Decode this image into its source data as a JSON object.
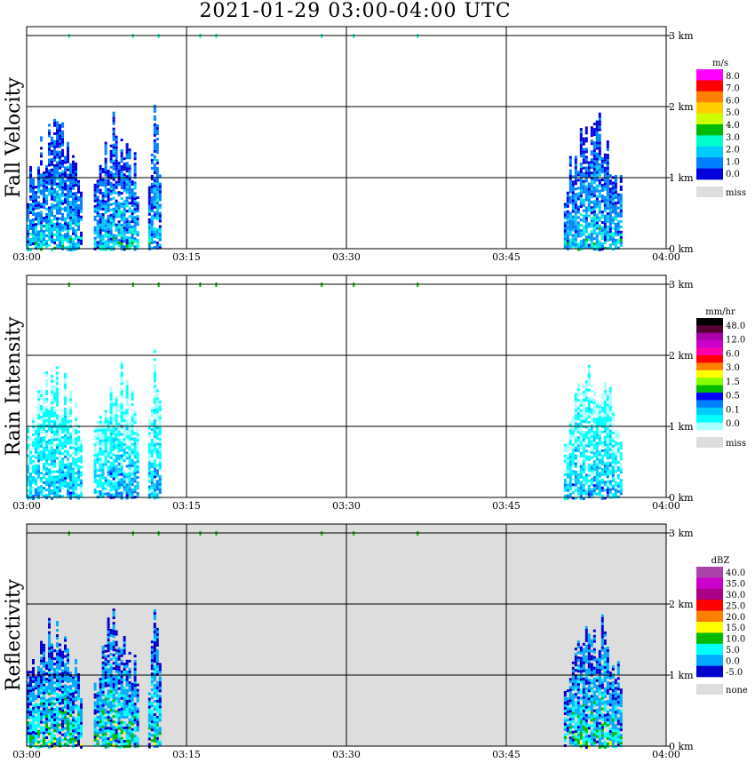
{
  "title": "2021-01-29   03:00-04:00 UTC",
  "chart_data": [
    {
      "type": "heatmap",
      "title": "Fall Velocity",
      "xlabel": "",
      "ylabel": "Fall Velocity",
      "x_ticks": [
        "03:00",
        "03:15",
        "03:30",
        "03:45",
        "04:00"
      ],
      "y_ticks": [
        "0 km",
        "1 km",
        "2 km",
        "3 km"
      ],
      "colorbar": {
        "unit": "m/s",
        "labels": [
          "8.0",
          "7.0",
          "6.0",
          "5.0",
          "4.0",
          "3.0",
          "2.0",
          "1.0",
          "0.0"
        ],
        "colors": [
          "#ff00ff",
          "#ff0000",
          "#ff7f00",
          "#ffcc00",
          "#ccff00",
          "#00bb00",
          "#00ffcc",
          "#00ccff",
          "#0080ff",
          "#0000dd"
        ],
        "miss_label": "miss",
        "miss_color": "#dddddd"
      },
      "background": "#ffffff"
    },
    {
      "type": "heatmap",
      "title": "Rain Intensity",
      "xlabel": "",
      "ylabel": "Rain Intensity",
      "x_ticks": [
        "03:00",
        "03:15",
        "03:30",
        "03:45",
        "04:00"
      ],
      "y_ticks": [
        "0 km",
        "1 km",
        "2 km",
        "3 km"
      ],
      "colorbar": {
        "unit": "mm/hr",
        "labels": [
          "48.0",
          "12.0",
          "6.0",
          "3.0",
          "1.5",
          "0.5",
          "0.1",
          "0.0"
        ],
        "colors": [
          "#000000",
          "#550033",
          "#aa00aa",
          "#cc00cc",
          "#ff00aa",
          "#ff0000",
          "#ff7f00",
          "#ffff00",
          "#88ff00",
          "#00bb00",
          "#0000ff",
          "#0080ff",
          "#00ccff",
          "#00ffff",
          "#aaffff"
        ],
        "miss_label": "miss",
        "miss_color": "#dddddd"
      },
      "background": "#ffffff"
    },
    {
      "type": "heatmap",
      "title": "Reflectivity",
      "xlabel": "",
      "ylabel": "Reflectivity",
      "x_ticks": [
        "03:00",
        "03:15",
        "03:30",
        "03:45",
        "04:00"
      ],
      "y_ticks": [
        "0 km",
        "1 km",
        "2 km",
        "3 km"
      ],
      "colorbar": {
        "unit": "dBZ",
        "labels": [
          "40.0",
          "35.0",
          "30.0",
          "25.0",
          "20.0",
          "15.0",
          "10.0",
          "5.0",
          "0.0",
          "-5.0"
        ],
        "colors": [
          "#aa44aa",
          "#cc00cc",
          "#aa0088",
          "#ff0000",
          "#ff7f00",
          "#ffff00",
          "#00bb00",
          "#00ffff",
          "#00aaff",
          "#0000cc"
        ],
        "miss_label": "none",
        "miss_color": "#dddddd"
      },
      "background": "#dddddd"
    }
  ]
}
